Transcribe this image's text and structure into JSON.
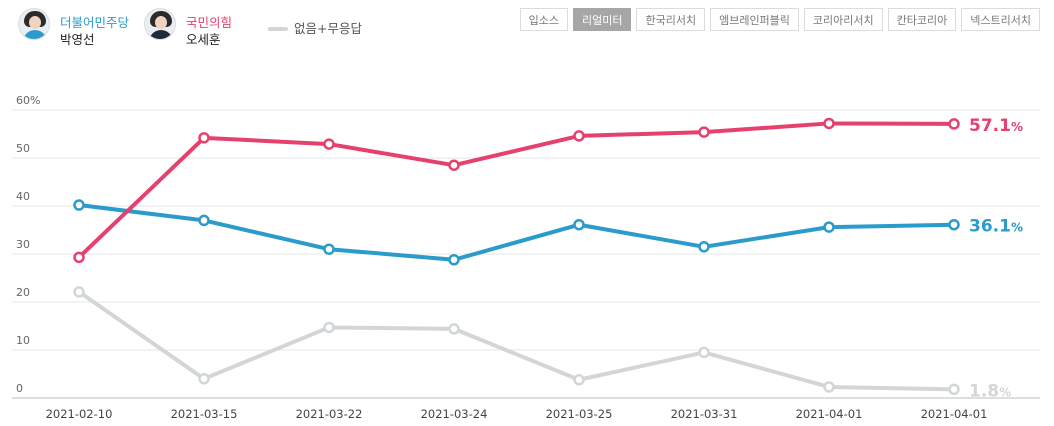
{
  "legend": {
    "candidates": [
      {
        "party": "더불어민주당",
        "name": "박영선",
        "color": "#2a9bcb",
        "avatar": "avatar-woman"
      },
      {
        "party": "국민의힘",
        "name": "오세훈",
        "color": "#e6416d",
        "avatar": "avatar-man"
      }
    ],
    "other_label": "없음+무응답",
    "other_color": "#d3d6d8"
  },
  "tabs": [
    "입소스",
    "리얼미터",
    "한국리서치",
    "엠브레인퍼블릭",
    "코리아리서치",
    "칸타코리아",
    "넥스트리서치"
  ],
  "active_tab": "리얼미터",
  "chart_data": {
    "type": "line",
    "categories": [
      "2021-02-10",
      "2021-03-15",
      "2021-03-22",
      "2021-03-24",
      "2021-03-25",
      "2021-03-31",
      "2021-04-01",
      "2021-04-01"
    ],
    "y_ticks": [
      "0",
      "10",
      "20",
      "30",
      "40",
      "50",
      "60%"
    ],
    "ylim": [
      0,
      60
    ],
    "grid": true,
    "series": [
      {
        "key": "pyss",
        "color": "#2a9bcb",
        "values": [
          40.2,
          37.0,
          31.0,
          28.8,
          36.1,
          31.5,
          35.6,
          36.1
        ],
        "end_label": "36.1",
        "unit": "%"
      },
      {
        "key": "ohsh",
        "color": "#e6416d",
        "values": [
          29.3,
          54.2,
          52.9,
          48.5,
          54.6,
          55.4,
          57.2,
          57.1
        ],
        "end_label": "57.1",
        "unit": "%"
      },
      {
        "key": "none",
        "color": "#d3d6d8",
        "values": [
          22.1,
          4.0,
          14.7,
          14.4,
          3.8,
          9.5,
          2.3,
          1.8
        ],
        "end_label": "1.8",
        "unit": "%"
      }
    ]
  }
}
